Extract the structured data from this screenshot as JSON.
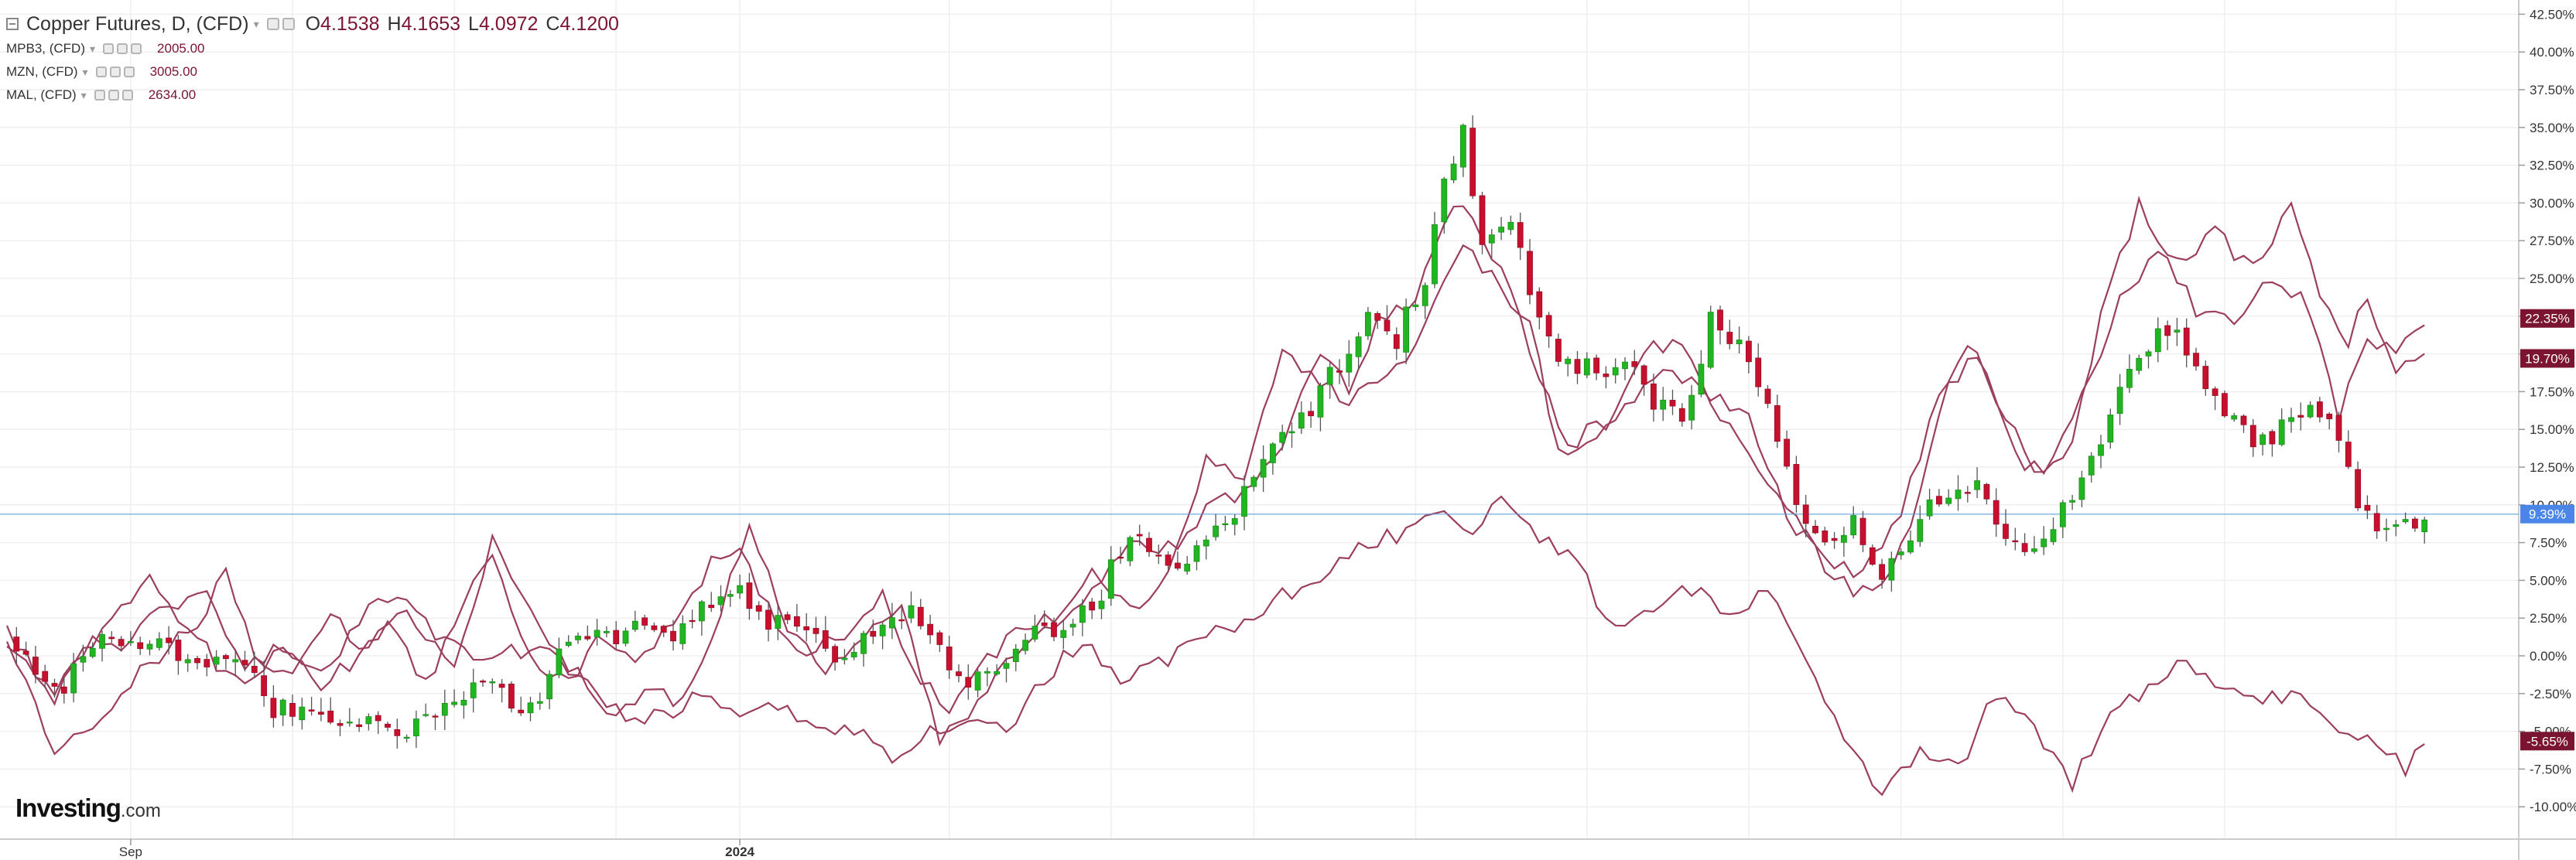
{
  "legend": {
    "main": {
      "title": "Copper Futures, D, (CFD)",
      "ohlc": [
        {
          "key": "O",
          "value": "4.1538"
        },
        {
          "key": "H",
          "value": "4.1653"
        },
        {
          "key": "L",
          "value": "4.0972"
        },
        {
          "key": "C",
          "value": "4.1200"
        }
      ]
    },
    "series": [
      {
        "name": "MPB3, (CFD)",
        "value": "2005.00"
      },
      {
        "name": "MZN, (CFD)",
        "value": "3005.00"
      },
      {
        "name": "MAL, (CFD)",
        "value": "2634.00"
      }
    ]
  },
  "logo": {
    "brand": "Investing",
    "suffix": ".com"
  },
  "colors": {
    "up": "#22b522",
    "down": "#c6102e",
    "wick": "#555555",
    "compare": "#9c3e5e",
    "grid": "#efefef",
    "axis": "#cccccc",
    "current_line": "#5b9bd5",
    "tag_dark": "#7b1430",
    "tag_blue": "#4a86e8"
  },
  "chart_data": {
    "type": "candlestick",
    "y_unit": "%",
    "ylim": [
      -11.5,
      43.0
    ],
    "y_ticks": [
      -10,
      -7.5,
      -5,
      -2.5,
      0,
      2.5,
      5,
      7.5,
      10,
      12.5,
      15,
      17.5,
      20,
      22.5,
      25,
      27.5,
      30,
      32.5,
      35,
      37.5,
      40,
      42.5
    ],
    "y_tick_labels": [
      "-10.00%",
      "-7.50%",
      "-5.00%",
      "-2.50%",
      "0.00%",
      "2.50%",
      "5.00%",
      "7.50%",
      "10.00%",
      "12.50%",
      "15.00%",
      "17.50%",
      "20.00%",
      "22.50%",
      "25.00%",
      "27.50%",
      "30.00%",
      "32.50%",
      "35.00%",
      "37.50%",
      "40.00%",
      "42.50%"
    ],
    "x_labels": [
      {
        "label": "Sep",
        "index": 13
      },
      {
        "label": "2024",
        "index": 77
      }
    ],
    "x_grid": [
      13,
      30,
      47,
      64,
      77,
      99,
      116,
      131,
      148,
      166,
      183,
      199,
      216,
      233,
      251
    ],
    "bar_count": 261,
    "current_value": 9.39,
    "price_tags": [
      {
        "label": "22.35%",
        "value": 22.35,
        "style": "dark"
      },
      {
        "label": "19.70%",
        "value": 19.7,
        "style": "dark"
      },
      {
        "label": "9.39%",
        "value": 9.39,
        "style": "blue"
      },
      {
        "label": "-5.65%",
        "value": -5.65,
        "style": "dark"
      }
    ],
    "copper_close_anchors": [
      [
        0,
        1.0
      ],
      [
        5,
        -2.5
      ],
      [
        10,
        1.5
      ],
      [
        15,
        0.5
      ],
      [
        20,
        0.2
      ],
      [
        25,
        -1.0
      ],
      [
        28,
        -3.5
      ],
      [
        33,
        -3.8
      ],
      [
        38,
        -4.5
      ],
      [
        42,
        -5.2
      ],
      [
        45,
        -3.5
      ],
      [
        50,
        -1.5
      ],
      [
        55,
        -3.8
      ],
      [
        58,
        0.5
      ],
      [
        62,
        1.0
      ],
      [
        66,
        2.0
      ],
      [
        70,
        1.0
      ],
      [
        73,
        3.0
      ],
      [
        77,
        4.0
      ],
      [
        80,
        2.5
      ],
      [
        85,
        0.8
      ],
      [
        88,
        -0.3
      ],
      [
        92,
        1.8
      ],
      [
        95,
        3.5
      ],
      [
        99,
        -1.0
      ],
      [
        102,
        -1.8
      ],
      [
        106,
        1.0
      ],
      [
        110,
        2.0
      ],
      [
        114,
        3.0
      ],
      [
        118,
        8.5
      ],
      [
        121,
        6.5
      ],
      [
        125,
        6.5
      ],
      [
        129,
        9.5
      ],
      [
        132,
        13.0
      ],
      [
        137,
        16.0
      ],
      [
        140,
        19.5
      ],
      [
        143,
        22.0
      ],
      [
        146,
        21.0
      ],
      [
        149,
        25.0
      ],
      [
        151,
        31.0
      ],
      [
        153,
        34.5
      ],
      [
        155,
        27.0
      ],
      [
        158,
        29.5
      ],
      [
        160,
        24.5
      ],
      [
        163,
        20.0
      ],
      [
        167,
        19.0
      ],
      [
        170,
        19.5
      ],
      [
        173,
        17.0
      ],
      [
        176,
        15.5
      ],
      [
        179,
        22.0
      ],
      [
        182,
        20.5
      ],
      [
        185,
        16.5
      ],
      [
        188,
        10.5
      ],
      [
        191,
        7.5
      ],
      [
        194,
        9.0
      ],
      [
        197,
        5.5
      ],
      [
        200,
        8.0
      ],
      [
        203,
        10.5
      ],
      [
        207,
        11.5
      ],
      [
        211,
        7.0
      ],
      [
        214,
        7.5
      ],
      [
        218,
        11.5
      ],
      [
        221,
        15.5
      ],
      [
        224,
        20.5
      ],
      [
        227,
        21.5
      ],
      [
        230,
        19.5
      ],
      [
        233,
        15.5
      ],
      [
        236,
        14.5
      ],
      [
        240,
        15.0
      ],
      [
        243,
        16.5
      ],
      [
        245,
        15.0
      ],
      [
        247,
        10.5
      ],
      [
        249,
        8.0
      ],
      [
        252,
        9.0
      ],
      [
        254,
        9.39
      ]
    ],
    "series": [
      {
        "name": "MPB3, (CFD)",
        "last": 22.35,
        "anchors": [
          [
            0,
            1.0
          ],
          [
            5,
            -3.0
          ],
          [
            10,
            2.0
          ],
          [
            15,
            5.0
          ],
          [
            19,
            2.0
          ],
          [
            22,
            -0.5
          ],
          [
            26,
            -2.0
          ],
          [
            29,
            1.0
          ],
          [
            33,
            -2.0
          ],
          [
            37,
            0.0
          ],
          [
            40,
            2.5
          ],
          [
            44,
            -2.0
          ],
          [
            48,
            4.0
          ],
          [
            51,
            7.0
          ],
          [
            55,
            0.0
          ],
          [
            59,
            -2.0
          ],
          [
            62,
            1.0
          ],
          [
            66,
            -0.5
          ],
          [
            70,
            2.5
          ],
          [
            74,
            6.0
          ],
          [
            77,
            7.0
          ],
          [
            80,
            3.0
          ],
          [
            84,
            0.0
          ],
          [
            88,
            1.5
          ],
          [
            92,
            4.0
          ],
          [
            95,
            -1.0
          ],
          [
            99,
            -3.5
          ],
          [
            102,
            -1.0
          ],
          [
            106,
            1.5
          ],
          [
            110,
            2.5
          ],
          [
            114,
            6.0
          ],
          [
            118,
            3.0
          ],
          [
            122,
            5.0
          ],
          [
            126,
            13.0
          ],
          [
            130,
            12.0
          ],
          [
            134,
            20.0
          ],
          [
            137,
            18.5
          ],
          [
            141,
            17.0
          ],
          [
            145,
            18.0
          ],
          [
            149,
            22.0
          ],
          [
            153,
            27.5
          ],
          [
            156,
            25.0
          ],
          [
            160,
            22.0
          ],
          [
            163,
            13.5
          ],
          [
            167,
            14.0
          ],
          [
            171,
            17.0
          ],
          [
            175,
            19.0
          ],
          [
            179,
            17.5
          ],
          [
            183,
            16.0
          ],
          [
            187,
            9.0
          ],
          [
            191,
            6.5
          ],
          [
            195,
            5.5
          ],
          [
            199,
            9.5
          ],
          [
            203,
            17.0
          ],
          [
            207,
            20.0
          ],
          [
            211,
            13.0
          ],
          [
            214,
            12.0
          ],
          [
            218,
            17.0
          ],
          [
            222,
            23.5
          ],
          [
            226,
            27.0
          ],
          [
            230,
            23.0
          ],
          [
            234,
            22.0
          ],
          [
            238,
            25.0
          ],
          [
            242,
            23.0
          ],
          [
            245,
            16.0
          ],
          [
            248,
            20.5
          ],
          [
            251,
            20.0
          ],
          [
            254,
            22.35
          ]
        ]
      },
      {
        "name": "MZN, (CFD)",
        "last": 19.7,
        "anchors": [
          [
            0,
            1.5
          ],
          [
            5,
            -7.0
          ],
          [
            10,
            -4.0
          ],
          [
            15,
            -0.5
          ],
          [
            20,
            2.0
          ],
          [
            23,
            5.5
          ],
          [
            26,
            0.0
          ],
          [
            30,
            -1.5
          ],
          [
            34,
            2.5
          ],
          [
            38,
            0.5
          ],
          [
            42,
            3.0
          ],
          [
            47,
            -1.0
          ],
          [
            51,
            8.0
          ],
          [
            55,
            3.0
          ],
          [
            59,
            -0.5
          ],
          [
            63,
            -4.0
          ],
          [
            67,
            -2.5
          ],
          [
            71,
            -3.0
          ],
          [
            75,
            3.0
          ],
          [
            78,
            8.5
          ],
          [
            82,
            2.0
          ],
          [
            86,
            -1.0
          ],
          [
            90,
            1.0
          ],
          [
            94,
            3.0
          ],
          [
            98,
            -5.5
          ],
          [
            102,
            -3.0
          ],
          [
            106,
            0.0
          ],
          [
            110,
            2.0
          ],
          [
            114,
            4.0
          ],
          [
            118,
            8.0
          ],
          [
            122,
            7.0
          ],
          [
            126,
            9.5
          ],
          [
            130,
            11.0
          ],
          [
            134,
            14.0
          ],
          [
            138,
            20.0
          ],
          [
            141,
            17.5
          ],
          [
            144,
            22.0
          ],
          [
            148,
            23.5
          ],
          [
            152,
            30.0
          ],
          [
            155,
            28.0
          ],
          [
            158,
            24.0
          ],
          [
            161,
            18.0
          ],
          [
            164,
            14.0
          ],
          [
            168,
            15.5
          ],
          [
            172,
            20.0
          ],
          [
            176,
            21.0
          ],
          [
            180,
            16.0
          ],
          [
            184,
            12.0
          ],
          [
            188,
            9.0
          ],
          [
            192,
            5.0
          ],
          [
            196,
            4.0
          ],
          [
            200,
            8.0
          ],
          [
            203,
            16.0
          ],
          [
            206,
            21.0
          ],
          [
            210,
            16.0
          ],
          [
            213,
            12.0
          ],
          [
            217,
            14.0
          ],
          [
            220,
            22.5
          ],
          [
            224,
            30.0
          ],
          [
            228,
            26.0
          ],
          [
            232,
            28.0
          ],
          [
            236,
            25.5
          ],
          [
            240,
            29.5
          ],
          [
            243,
            24.0
          ],
          [
            246,
            20.5
          ],
          [
            248,
            24.0
          ],
          [
            251,
            19.0
          ],
          [
            254,
            19.7
          ]
        ]
      },
      {
        "name": "MAL, (CFD)",
        "last": -5.65,
        "anchors": [
          [
            0,
            1.5
          ],
          [
            5,
            -2.5
          ],
          [
            9,
            1.0
          ],
          [
            13,
            0.5
          ],
          [
            16,
            3.5
          ],
          [
            21,
            4.0
          ],
          [
            25,
            -0.5
          ],
          [
            29,
            0.5
          ],
          [
            33,
            -1.5
          ],
          [
            37,
            2.5
          ],
          [
            41,
            4.0
          ],
          [
            45,
            1.5
          ],
          [
            49,
            -0.5
          ],
          [
            53,
            0.5
          ],
          [
            57,
            0.0
          ],
          [
            61,
            -1.5
          ],
          [
            65,
            -4.5
          ],
          [
            69,
            -4.0
          ],
          [
            73,
            -2.5
          ],
          [
            77,
            -4.0
          ],
          [
            81,
            -3.5
          ],
          [
            85,
            -4.5
          ],
          [
            89,
            -5.0
          ],
          [
            93,
            -6.5
          ],
          [
            97,
            -5.0
          ],
          [
            101,
            -4.0
          ],
          [
            105,
            -5.0
          ],
          [
            109,
            -1.5
          ],
          [
            113,
            1.0
          ],
          [
            117,
            -1.5
          ],
          [
            121,
            -0.5
          ],
          [
            125,
            1.0
          ],
          [
            129,
            2.0
          ],
          [
            133,
            3.5
          ],
          [
            138,
            5.5
          ],
          [
            142,
            7.5
          ],
          [
            146,
            8.0
          ],
          [
            150,
            10.0
          ],
          [
            153,
            8.0
          ],
          [
            157,
            10.0
          ],
          [
            161,
            8.0
          ],
          [
            165,
            6.0
          ],
          [
            169,
            1.5
          ],
          [
            173,
            3.0
          ],
          [
            177,
            4.5
          ],
          [
            181,
            3.0
          ],
          [
            185,
            4.0
          ],
          [
            189,
            0.0
          ],
          [
            193,
            -5.0
          ],
          [
            197,
            -9.0
          ],
          [
            201,
            -6.0
          ],
          [
            205,
            -7.5
          ],
          [
            209,
            -2.5
          ],
          [
            213,
            -5.0
          ],
          [
            217,
            -8.5
          ],
          [
            221,
            -4.0
          ],
          [
            225,
            -2.0
          ],
          [
            229,
            -0.5
          ],
          [
            233,
            -2.0
          ],
          [
            237,
            -3.0
          ],
          [
            241,
            -2.5
          ],
          [
            245,
            -5.0
          ],
          [
            249,
            -5.5
          ],
          [
            252,
            -7.5
          ],
          [
            254,
            -5.65
          ]
        ]
      }
    ]
  }
}
